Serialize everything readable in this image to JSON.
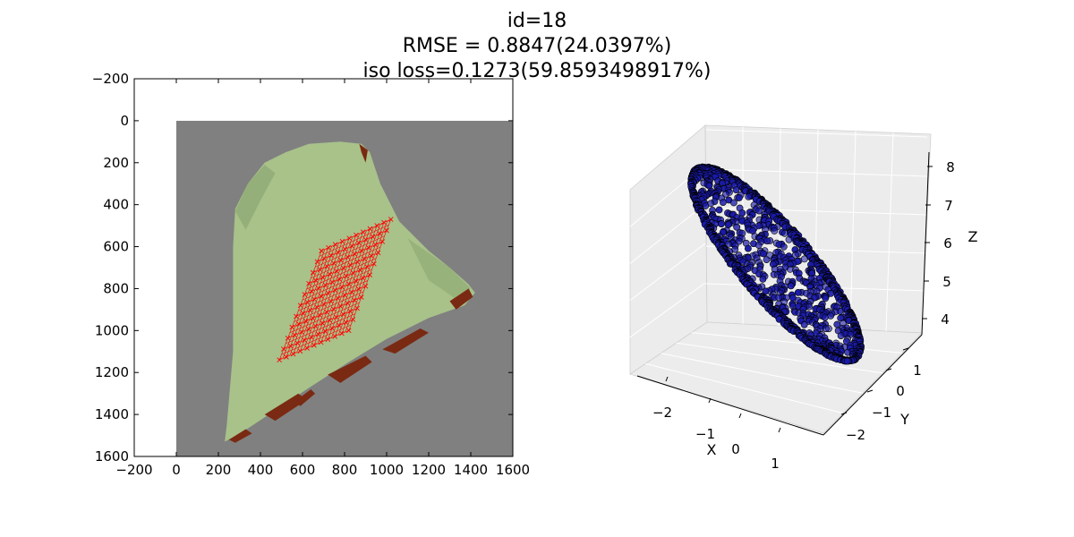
{
  "figure": {
    "title_lines": [
      "id=18",
      "RMSE = 0.8847(24.0397%)",
      "iso loss=0.1273(59.8593498917%)"
    ]
  },
  "colors": {
    "background_image": "#808080",
    "cloth": "#a8c28a",
    "cloth_shadow": "#7d9a64",
    "stain": "#7a2a12",
    "overlay_marks": "#ff0000",
    "points_fill": "#1a1aa8",
    "points_edge": "#000000",
    "pane": "#ececec",
    "grid": "#ffffff"
  },
  "chart_data": [
    {
      "type": "image_with_overlay",
      "x_ticks": [
        "−200",
        "0",
        "200",
        "400",
        "600",
        "800",
        "1000",
        "1200",
        "1400",
        "1600"
      ],
      "y_ticks": [
        "−200",
        "0",
        "200",
        "400",
        "600",
        "800",
        "1000",
        "1200",
        "1400",
        "1600"
      ],
      "xlim": [
        -200,
        1600
      ],
      "ylim": [
        1600,
        -200
      ],
      "image_extent": {
        "x": [
          0,
          1600
        ],
        "y": [
          0,
          1600
        ]
      },
      "overlay": {
        "description_color": "red",
        "grid_corners": [
          [
            1020,
            470
          ],
          [
            690,
            620
          ],
          [
            490,
            1140
          ],
          [
            820,
            1000
          ]
        ]
      }
    },
    {
      "type": "scatter3d",
      "xlabel": "X",
      "ylabel": "Y",
      "zlabel": "Z",
      "x_ticks": [
        "−2",
        "−1",
        "0",
        "1"
      ],
      "y_ticks": [
        "−2",
        "−1",
        "0",
        "1"
      ],
      "z_ticks": [
        "4",
        "5",
        "6",
        "7",
        "8"
      ],
      "xlim": [
        -2.8,
        1.8
      ],
      "ylim": [
        -2.5,
        1.6
      ],
      "zlim": [
        3.6,
        8.3
      ],
      "grid": true,
      "points": {
        "shape": "ellipsoidal cloud",
        "extent_x": [
          -2.6,
          1.5
        ],
        "extent_y": [
          -2.3,
          1.4
        ],
        "extent_z": [
          3.9,
          8.2
        ]
      }
    }
  ]
}
